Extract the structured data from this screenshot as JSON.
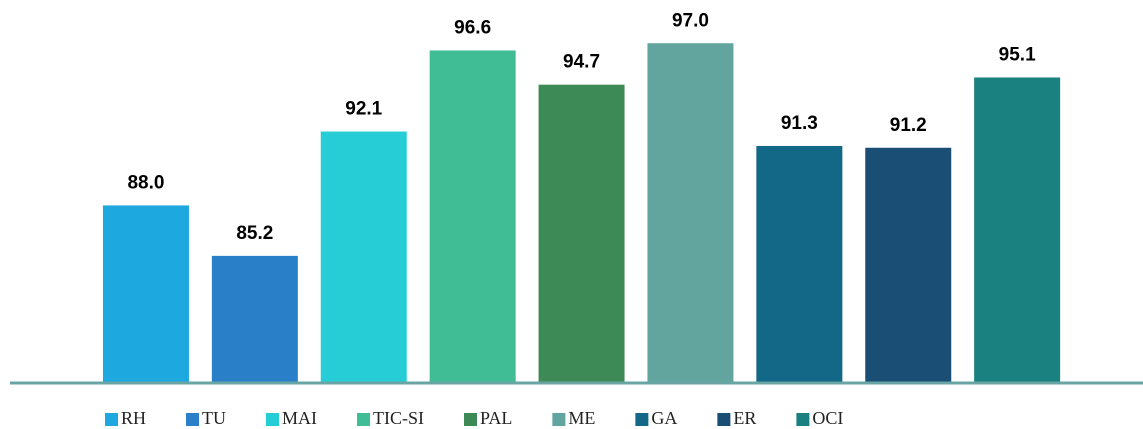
{
  "chart_data": {
    "type": "bar",
    "categories": [
      "RH",
      "TU",
      "MAI",
      "TIC-SI",
      "PAL",
      "ME",
      "GA",
      "ER",
      "OCI"
    ],
    "values": [
      88.0,
      85.2,
      92.1,
      96.6,
      94.7,
      97.0,
      91.3,
      91.2,
      95.1
    ],
    "value_labels": [
      "88.0",
      "85.2",
      "92.1",
      "96.6",
      "94.7",
      "97.0",
      "91.3",
      "91.2",
      "95.1"
    ],
    "colors": [
      "#1ea8e0",
      "#2a80c8",
      "#26cdd6",
      "#41bd96",
      "#3e8a57",
      "#62a59e",
      "#136888",
      "#1b4e74",
      "#1a8080"
    ],
    "ylim": [
      78.2,
      99.4
    ],
    "legend": "bottom"
  }
}
